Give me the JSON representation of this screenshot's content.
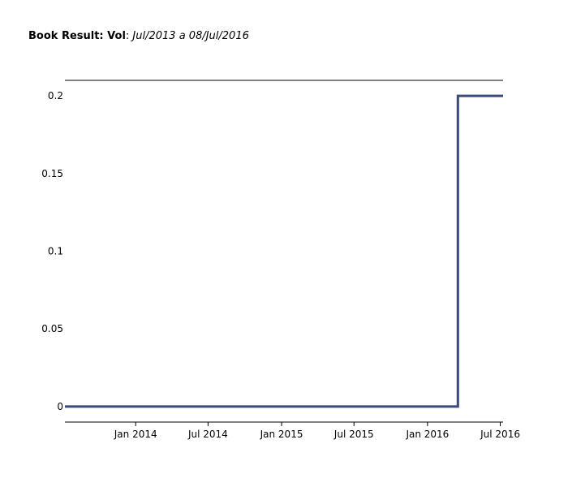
{
  "title": {
    "bold_part": "Book Result: Vol",
    "separator": ": ",
    "italic_part": "Jul/2013 a 08/Jul/2016"
  },
  "chart_data": {
    "type": "line",
    "step": true,
    "title": "Book Result: Vol: Jul/2013 a 08/Jul/2016",
    "xlabel": "",
    "ylabel": "",
    "x_range": [
      "2013-07-08",
      "2016-07-08"
    ],
    "y_range": [
      -0.01,
      0.21
    ],
    "x_ticks": [
      {
        "date": "2014-01-01",
        "label": "Jan 2014"
      },
      {
        "date": "2014-07-01",
        "label": "Jul 2014"
      },
      {
        "date": "2015-01-01",
        "label": "Jan 2015"
      },
      {
        "date": "2015-07-01",
        "label": "Jul 2015"
      },
      {
        "date": "2016-01-01",
        "label": "Jan 2016"
      },
      {
        "date": "2016-07-01",
        "label": "Jul 2016"
      }
    ],
    "y_ticks": [
      {
        "value": 0,
        "label": "0"
      },
      {
        "value": 0.05,
        "label": "0.05"
      },
      {
        "value": 0.1,
        "label": "0.1"
      },
      {
        "value": 0.15,
        "label": "0.15"
      },
      {
        "value": 0.2,
        "label": "0.2"
      }
    ],
    "series": [
      {
        "color": "#3b4a7a",
        "points": [
          {
            "x": "2013-07-08",
            "y": 0
          },
          {
            "x": "2016-03-17",
            "y": 0
          },
          {
            "x": "2016-03-17",
            "y": 0.2
          },
          {
            "x": "2016-07-08",
            "y": 0.2
          }
        ]
      }
    ],
    "grid": false,
    "legend": "none"
  }
}
